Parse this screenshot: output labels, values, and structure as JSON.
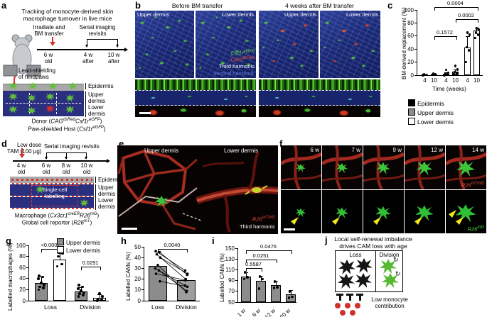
{
  "panel_a": {
    "label": "a",
    "title1": "Tracking of monocyte-derived skin",
    "title2": "macrophage turnover in live mice",
    "irradiate1": "Irradiate and",
    "irradiate2": "BM transfer",
    "serial1": "Serial imaging",
    "serial2": "revisits",
    "tp1a": "6 w",
    "tp1b": "old",
    "tp2a": "4 w",
    "tp2b": "after",
    "tp3a": "10 w",
    "tp3b": "after",
    "shield1": "Lead-shielding",
    "shield2": "of hindpaws",
    "epidermis": "Epidermis",
    "upper1": "Upper",
    "upper2": "dermis",
    "lower1": "Lower",
    "lower2": "dermis",
    "donor_pre": "Donor (",
    "donor_g1": "CAG",
    "donor_s1": "dsRed",
    "donor_g2": "Csf1r",
    "donor_s2": "eGFP",
    "donor_post": ")",
    "host_pre": "Paw-shielded Host (",
    "host_g": "Csf1r",
    "host_s": "eGFP",
    "host_post": ")"
  },
  "panel_b": {
    "label": "b",
    "header_before": "Before BM transfer",
    "header_after": "4 weeks after BM transfer",
    "upper_dermis": "Upper dermis",
    "lower_dermis": "Lower dermis",
    "ch1g": "Csf1r",
    "ch1s": "eGFP",
    "ch2g": "CAG",
    "ch2s": "dsRed",
    "ch3": "Third harmonic",
    "ch4": "Second harmonic"
  },
  "panel_c": {
    "label": "c",
    "xlabel": "Time (weeks)"
  },
  "panel_d": {
    "label": "d",
    "dose1": "Low dose",
    "dose2": "TAM (100 µg)",
    "serial": "Serial imaging revisits",
    "tp1a": "4 w",
    "tp1b": "old",
    "tp2a": "6 w",
    "tp2b": "old",
    "tp3a": "8 w",
    "tp3b": "old",
    "tp4a": "10 w",
    "tp4b": "old",
    "epidermis": "Epidermis",
    "upper1": "Upper",
    "upper2": "dermis",
    "lower1": "Lower",
    "lower2": "dermis",
    "single1": "Single-cell",
    "single2": "labelling",
    "mac_pre": "Macrophage (",
    "mac_g1": "Cx3cr1",
    "mac_s1": "creER",
    "mac_g2": "R26",
    "mac_s2": "mG",
    "mac_post": ")",
    "rep_pre": "Global cell reporter (",
    "rep_g": "R26",
    "rep_s": "mT",
    "rep_post": ")"
  },
  "panel_e": {
    "label": "e",
    "upper_dermis": "Upper dermis",
    "lower_dermis": "Lower dermis",
    "r26": "R26",
    "r26s": "mTmG",
    "third": "Third harmonic"
  },
  "panel_f": {
    "label": "f",
    "frames": [
      {
        "time": "6 w"
      },
      {
        "time": "7 w"
      },
      {
        "time": "9 w"
      },
      {
        "time": "12 w"
      },
      {
        "time": "14 w"
      }
    ],
    "r26_top": "R26",
    "r26_top_s": "mTmG",
    "r26_bot": "R26",
    "r26_bot_s": "mG"
  },
  "panel_g": {
    "label": "g"
  },
  "panel_h": {
    "label": "h"
  },
  "panel_i": {
    "label": "i"
  },
  "panel_j": {
    "label": "j",
    "title1": "Local self-renewal imbalance",
    "title2": "drives CAM loss with age",
    "loss": "Loss",
    "division": "Division",
    "mono1": "Low monocyte",
    "mono2": "contribution"
  },
  "chart_data": [
    {
      "id": "c",
      "type": "bar",
      "title": "",
      "xlabel": "Time (weeks)",
      "ylabel": "BM-derived replacement (%)",
      "ylim": [
        0,
        100
      ],
      "yticks": [
        0,
        20,
        40,
        60,
        80,
        100
      ],
      "legend": [
        {
          "label": "Epidermis",
          "color": "#000000"
        },
        {
          "label": "Upper dermis",
          "color": "#8c8c8c"
        },
        {
          "label": "Lower dermis",
          "color": "#ffffff"
        }
      ],
      "groups": [
        {
          "name": "Epidermis",
          "color": "#000000",
          "bars": [
            {
              "x": "4",
              "value": 0.8,
              "err": 0,
              "points": [
                0,
                0.5,
                1
              ]
            },
            {
              "x": "10",
              "value": 1,
              "err": 0,
              "points": [
                0.5,
                1,
                2
              ]
            }
          ]
        },
        {
          "name": "Upper dermis",
          "color": "#8c8c8c",
          "bars": [
            {
              "x": "4",
              "value": 2,
              "err": 2,
              "points": [
                0,
                1,
                2,
                4,
                8
              ]
            },
            {
              "x": "10",
              "value": 5,
              "err": 4,
              "points": [
                1,
                3,
                5,
                9,
                14
              ]
            }
          ]
        },
        {
          "name": "Lower dermis",
          "color": "#ffffff",
          "bars": [
            {
              "x": "4",
              "value": 42,
              "err": 18,
              "points": [
                20,
                38,
                43,
                62,
                65
              ]
            },
            {
              "x": "10",
              "value": 68,
              "err": 5,
              "points": [
                57,
                62,
                65,
                70,
                72
              ]
            }
          ]
        }
      ],
      "pvalues": [
        {
          "from": [
            0,
            1
          ],
          "to": [
            2,
            1
          ],
          "y": 104,
          "label": "0.0004"
        },
        {
          "from": [
            1,
            1
          ],
          "to": [
            2,
            1
          ],
          "y": 86,
          "label": "0.0002"
        },
        {
          "from": [
            0,
            1
          ],
          "to": [
            1,
            1
          ],
          "y": 60,
          "label": "0.1572"
        }
      ]
    },
    {
      "id": "g",
      "type": "bar",
      "ylabel": "Labelled macrophages (%)",
      "ylim": [
        0,
        100
      ],
      "yticks": [
        0,
        20,
        40,
        60,
        80,
        100
      ],
      "categories": [
        "Loss",
        "Division"
      ],
      "series": [
        {
          "name": "Upper dermis",
          "color": "#8c8c8c",
          "values": [
            32,
            17
          ],
          "err": [
            11,
            8
          ],
          "points": [
            [
              20,
              23,
              25,
              28,
              32,
              40,
              43,
              45
            ],
            [
              8,
              10,
              13,
              15,
              18,
              22,
              25,
              28
            ]
          ]
        },
        {
          "name": "Lower dermis",
          "color": "#ffffff",
          "values": [
            74,
            5
          ],
          "err": [
            12,
            7
          ],
          "points": [
            [
              62,
              66,
              80,
              85
            ],
            [
              0,
              1,
              3,
              8,
              13
            ]
          ]
        }
      ],
      "pvalues": [
        {
          "cat": 0,
          "y": 93,
          "label": "<0.0001"
        },
        {
          "cat": 1,
          "y": 62,
          "label": "0.0291"
        }
      ]
    },
    {
      "id": "h",
      "type": "bar",
      "ylabel": "Labelled CAMs (%)",
      "ylim": [
        0,
        50
      ],
      "yticks": [
        0,
        10,
        20,
        30,
        40,
        50
      ],
      "categories": [
        "Loss",
        "Division"
      ],
      "values": [
        32,
        19
      ],
      "colors": [
        "#8c8c8c",
        "#9e9e9e"
      ],
      "pairs": [
        [
          46,
          28
        ],
        [
          45,
          24
        ],
        [
          43,
          20
        ],
        [
          40,
          25
        ],
        [
          33,
          8
        ],
        [
          30,
          14
        ],
        [
          28,
          9
        ],
        [
          25,
          19
        ],
        [
          18,
          13
        ]
      ],
      "pvalue": {
        "y": 48,
        "label": "0.0040"
      }
    },
    {
      "id": "i",
      "type": "bar",
      "ylabel": "Labelled CAMs (%)",
      "ylim": [
        50,
        150
      ],
      "yticks": [
        50,
        70,
        90,
        110,
        130,
        150
      ],
      "categories": [
        "1 w",
        "6 w",
        "12 w",
        "20 w"
      ],
      "values": [
        97,
        89,
        81,
        65
      ],
      "err": [
        8,
        10,
        8,
        8
      ],
      "color": "#8c8c8c",
      "points": [
        [
          93,
          96,
          105
        ],
        [
          75,
          93,
          97
        ],
        [
          76,
          78,
          88
        ],
        [
          58,
          60,
          70
        ]
      ],
      "pvalues": [
        {
          "from": 0,
          "to": 1,
          "y": 113,
          "label": "0.5587"
        },
        {
          "from": 0,
          "to": 2,
          "y": 129,
          "label": "0.0251"
        },
        {
          "from": 0,
          "to": 3,
          "y": 146,
          "label": "0.0476"
        }
      ]
    }
  ]
}
